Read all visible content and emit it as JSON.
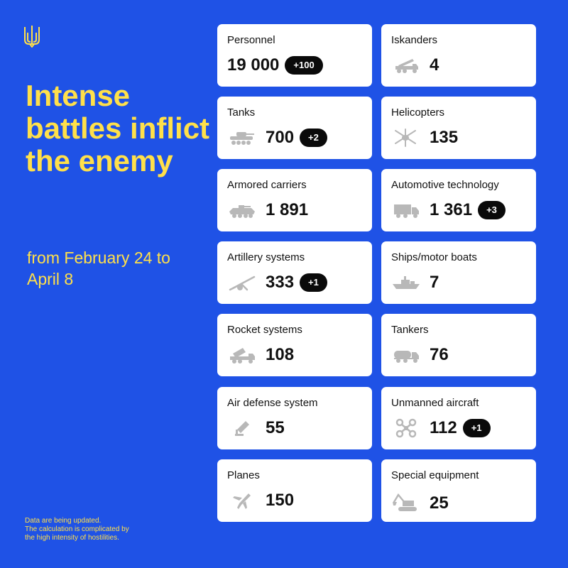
{
  "headline": "Intense battles inflict the enemy",
  "period": "from February 24 to April 8",
  "footnote": [
    "Data are being updated.",
    "The calculation is complicated by",
    "the high intensity of hostilities."
  ],
  "icon_color": "#b8b8b8",
  "accent_color": "#ffe04a",
  "background_color": "#1f52e6",
  "cards": {
    "personnel": {
      "label": "Personnel",
      "value": "19 000",
      "delta": "+100",
      "icon": "none"
    },
    "iskanders": {
      "label": "Iskanders",
      "value": "4",
      "delta": "",
      "icon": "missile-launcher-icon"
    },
    "tanks": {
      "label": "Tanks",
      "value": "700",
      "delta": "+2",
      "icon": "tank-icon"
    },
    "helicopters": {
      "label": "Helicopters",
      "value": "135",
      "delta": "",
      "icon": "helicopter-icon"
    },
    "armored": {
      "label": "Armored carriers",
      "value": "1 891",
      "delta": "",
      "icon": "armored-carrier-icon"
    },
    "automotive": {
      "label": "Automotive technology",
      "value": "1 361",
      "delta": "+3",
      "icon": "truck-icon"
    },
    "artillery": {
      "label": "Artillery systems",
      "value": "333",
      "delta": "+1",
      "icon": "artillery-icon"
    },
    "ships": {
      "label": "Ships/motor boats",
      "value": "7",
      "delta": "",
      "icon": "ship-icon"
    },
    "rockets": {
      "label": "Rocket systems",
      "value": "108",
      "delta": "",
      "icon": "rocket-launcher-icon"
    },
    "tankers": {
      "label": "Tankers",
      "value": "76",
      "delta": "",
      "icon": "tanker-truck-icon"
    },
    "airdefense": {
      "label": "Air defense system",
      "value": "55",
      "delta": "",
      "icon": "air-defense-icon"
    },
    "drones": {
      "label": "Unmanned aircraft",
      "value": "112",
      "delta": "+1",
      "icon": "drone-icon"
    },
    "planes": {
      "label": "Planes",
      "value": "150",
      "delta": "",
      "icon": "plane-icon"
    },
    "special": {
      "label": "Special equipment",
      "value": "25",
      "delta": "",
      "icon": "excavator-icon"
    }
  }
}
